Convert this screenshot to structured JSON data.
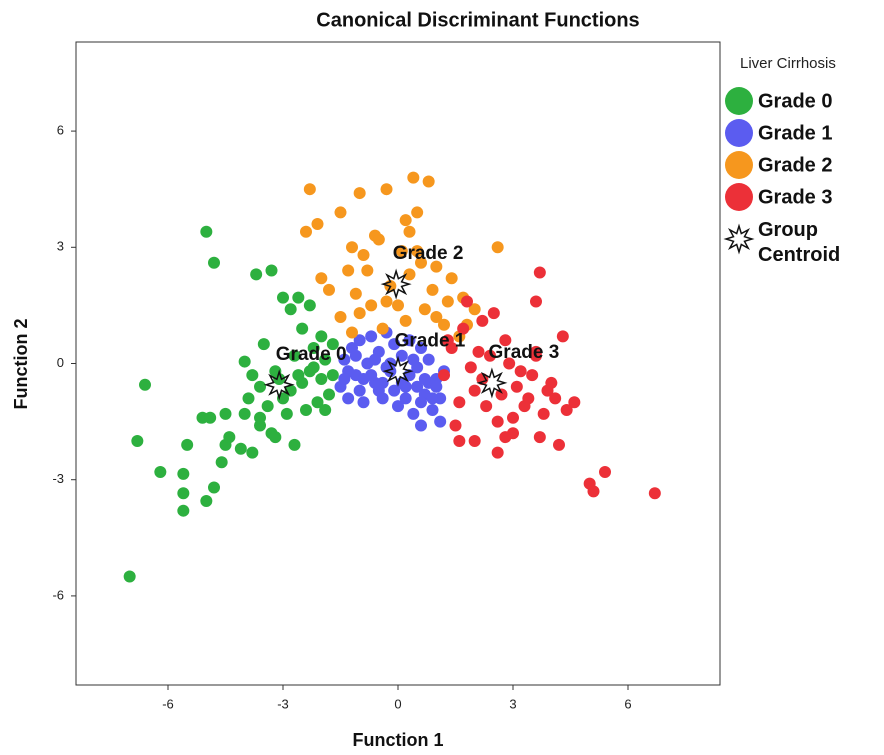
{
  "chart_data": {
    "type": "scatter",
    "title": "Canonical Discriminant Functions",
    "x_label": "Function 1",
    "y_label": "Function 2",
    "legend_title": "Liver Cirrhosis",
    "legend": "right",
    "grid": false,
    "xlim": [
      -8.4,
      8.4
    ],
    "ylim": [
      -8.3,
      8.3
    ],
    "xticks": [
      -6,
      -3,
      0,
      3,
      6
    ],
    "yticks": [
      -6,
      -3,
      0,
      3,
      6
    ],
    "series": [
      {
        "name": "Grade 0",
        "color": "#2db03f",
        "x": [
          -7.0,
          -5.6,
          -5.6,
          -5.6,
          -6.2,
          -6.8,
          -6.6,
          -5.0,
          -4.8,
          -5.5,
          -4.6,
          -4.5,
          -4.4,
          -4.1,
          -3.8,
          -3.6,
          -3.3,
          -3.2,
          -2.7,
          -5.1,
          -4.9,
          -4.5,
          -4.0,
          -3.9,
          -3.6,
          -3.8,
          -3.2,
          -3.0,
          -2.8,
          -2.5,
          -2.3,
          -2.0,
          -1.9,
          -2.1,
          -2.4,
          -2.9,
          -1.7,
          -2.5,
          -2.8,
          -3.0,
          -3.3,
          -3.7,
          -4.8,
          -5.0,
          -2.6,
          -2.3,
          -4.0,
          -3.5,
          -2.0,
          -1.8,
          -1.7,
          -2.2,
          -3.4,
          -2.6,
          -1.9,
          -3.1,
          -2.7,
          -3.6,
          -2.2
        ],
        "y": [
          -5.5,
          -3.8,
          -3.35,
          -2.85,
          -2.8,
          -2.0,
          -0.55,
          -3.55,
          -3.2,
          -2.1,
          -2.55,
          -2.1,
          -1.9,
          -2.2,
          -2.3,
          -1.6,
          -1.8,
          -1.9,
          -2.1,
          -1.4,
          -1.4,
          -1.3,
          -1.3,
          -0.9,
          -0.6,
          -0.3,
          -0.2,
          -0.9,
          -0.7,
          -0.5,
          -0.2,
          -0.4,
          0.1,
          -1.0,
          -1.2,
          -1.3,
          0.5,
          0.9,
          1.4,
          1.7,
          2.4,
          2.3,
          2.6,
          3.4,
          1.7,
          1.5,
          0.05,
          0.5,
          0.7,
          -0.8,
          -0.3,
          -0.1,
          -1.1,
          -0.3,
          -1.2,
          -0.4,
          0.2,
          -1.4,
          0.4
        ]
      },
      {
        "name": "Grade 1",
        "color": "#5b5cf0",
        "x": [
          -1.5,
          -1.4,
          -1.3,
          -1.2,
          -1.1,
          -1.0,
          -0.9,
          -0.8,
          -0.7,
          -0.6,
          -0.5,
          -0.4,
          -0.3,
          -0.2,
          -0.1,
          0.0,
          0.1,
          0.2,
          0.3,
          0.4,
          0.5,
          0.6,
          0.7,
          0.8,
          0.9,
          1.0,
          1.1,
          1.2,
          -1.3,
          -1.0,
          -0.7,
          -0.4,
          -0.1,
          0.2,
          0.5,
          0.8,
          1.1,
          -1.1,
          -0.6,
          -0.2,
          0.3,
          0.7,
          1.0,
          -0.9,
          -0.3,
          0.4,
          0.6,
          -0.5,
          0.1,
          0.9,
          -1.4,
          0.6
        ],
        "y": [
          -0.6,
          0.1,
          -0.9,
          0.4,
          -0.3,
          0.6,
          -1.0,
          0.0,
          0.7,
          -0.5,
          0.3,
          -0.9,
          0.8,
          -0.2,
          0.5,
          -1.1,
          0.2,
          -0.6,
          0.6,
          -1.3,
          -0.1,
          0.4,
          -0.8,
          0.1,
          -1.2,
          -0.4,
          -0.9,
          -0.2,
          -0.2,
          -0.7,
          -0.3,
          -0.5,
          -0.7,
          -0.9,
          -0.6,
          -0.5,
          -1.5,
          0.2,
          0.1,
          0.0,
          -0.3,
          -0.4,
          -0.6,
          -0.4,
          -0.1,
          0.1,
          -1.0,
          -0.7,
          -0.5,
          -0.9,
          -0.4,
          -1.6
        ]
      },
      {
        "name": "Grade 2",
        "color": "#f6971e",
        "x": [
          -2.3,
          -2.1,
          -1.5,
          -1.0,
          -0.3,
          0.4,
          0.8,
          0.2,
          0.5,
          -0.6,
          -1.2,
          -2.0,
          -1.8,
          -1.3,
          -0.9,
          -0.5,
          0.1,
          0.6,
          1.0,
          1.4,
          1.7,
          2.0,
          2.6,
          -1.1,
          -0.7,
          -0.2,
          0.3,
          0.9,
          1.3,
          -1.5,
          -1.0,
          -0.4,
          0.2,
          0.7,
          1.2,
          1.6,
          -0.8,
          0.0,
          0.5,
          -1.2,
          -0.3,
          1.0,
          1.8,
          -2.4,
          0.3
        ],
        "y": [
          4.5,
          3.6,
          3.9,
          4.4,
          4.5,
          4.8,
          4.7,
          3.7,
          3.9,
          3.3,
          3.0,
          2.2,
          1.9,
          2.4,
          2.8,
          3.2,
          2.9,
          2.6,
          2.5,
          2.2,
          1.7,
          1.4,
          3.0,
          1.8,
          1.5,
          2.0,
          2.3,
          1.9,
          1.6,
          1.2,
          1.3,
          0.9,
          1.1,
          1.4,
          1.0,
          0.7,
          2.4,
          1.5,
          2.9,
          0.8,
          1.6,
          1.2,
          1.0,
          3.4,
          3.4
        ]
      },
      {
        "name": "Grade 3",
        "color": "#ec3038",
        "x": [
          1.2,
          1.4,
          1.6,
          1.8,
          2.0,
          2.2,
          2.4,
          2.6,
          2.8,
          3.0,
          3.2,
          3.4,
          3.6,
          3.8,
          4.0,
          4.2,
          4.4,
          4.6,
          1.5,
          1.9,
          2.3,
          2.7,
          3.1,
          3.5,
          3.9,
          1.3,
          1.7,
          2.1,
          2.5,
          2.9,
          3.3,
          3.7,
          2.0,
          2.6,
          3.0,
          3.6,
          4.1,
          5.0,
          5.1,
          5.4,
          6.7,
          3.7,
          3.6,
          2.2,
          1.6,
          2.8,
          4.3
        ],
        "y": [
          -0.3,
          0.4,
          -1.0,
          1.6,
          -0.7,
          1.1,
          0.2,
          -1.5,
          0.6,
          -1.8,
          -0.2,
          -0.9,
          0.3,
          -1.3,
          -0.5,
          -2.1,
          -1.2,
          -1.0,
          -1.6,
          -0.1,
          -1.1,
          -0.8,
          -0.6,
          -0.3,
          -0.7,
          0.6,
          0.9,
          0.3,
          1.3,
          0.0,
          -1.1,
          -1.9,
          -2.0,
          -2.3,
          -1.4,
          0.2,
          -0.9,
          -3.1,
          -3.3,
          -2.8,
          -3.35,
          2.35,
          1.6,
          -0.4,
          -2.0,
          -1.9,
          0.7
        ]
      }
    ],
    "centroids": {
      "name": "Group Centroid",
      "x": [
        -3.1,
        0.0,
        -0.05,
        2.45
      ],
      "y": [
        -0.55,
        -0.2,
        2.05,
        -0.5
      ],
      "labels": [
        "Grade 0",
        "Grade 1",
        "Grade 2",
        "Grade 3"
      ]
    }
  }
}
